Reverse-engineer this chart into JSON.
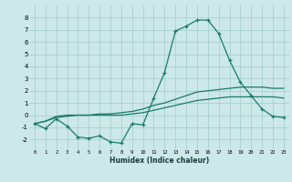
{
  "xlabel": "Humidex (Indice chaleur)",
  "bg_color": "#cce8e8",
  "grid_color": "#aacfcf",
  "line_color": "#1a7a6a",
  "x_values": [
    0,
    1,
    2,
    3,
    4,
    5,
    6,
    7,
    8,
    9,
    10,
    11,
    12,
    13,
    14,
    15,
    16,
    17,
    18,
    19,
    20,
    21,
    22,
    23
  ],
  "line1": [
    -0.7,
    -1.1,
    -0.3,
    -0.9,
    -1.8,
    -1.9,
    -1.7,
    -2.2,
    -2.3,
    -0.7,
    -0.8,
    1.4,
    3.5,
    6.9,
    7.3,
    7.8,
    7.8,
    6.7,
    4.5,
    2.7,
    1.6,
    0.5,
    -0.1,
    -0.2
  ],
  "line2": [
    -0.7,
    -0.5,
    -0.1,
    0.0,
    0.0,
    0.0,
    0.1,
    0.1,
    0.2,
    0.3,
    0.5,
    0.8,
    1.0,
    1.3,
    1.6,
    1.9,
    2.0,
    2.1,
    2.2,
    2.3,
    2.3,
    2.3,
    2.2,
    2.2
  ],
  "line3": [
    -0.7,
    -0.5,
    -0.2,
    -0.1,
    0.0,
    0.0,
    0.0,
    0.0,
    0.0,
    0.1,
    0.2,
    0.4,
    0.6,
    0.8,
    1.0,
    1.2,
    1.3,
    1.4,
    1.5,
    1.5,
    1.5,
    1.5,
    1.5,
    1.4
  ],
  "ylim": [
    -2.8,
    9.0
  ],
  "xlim": [
    -0.5,
    23.5
  ],
  "yticks": [
    -2,
    -1,
    0,
    1,
    2,
    3,
    4,
    5,
    6,
    7,
    8
  ],
  "xticks": [
    0,
    1,
    2,
    3,
    4,
    5,
    6,
    7,
    8,
    9,
    10,
    11,
    12,
    13,
    14,
    15,
    16,
    17,
    18,
    19,
    20,
    21,
    22,
    23
  ]
}
